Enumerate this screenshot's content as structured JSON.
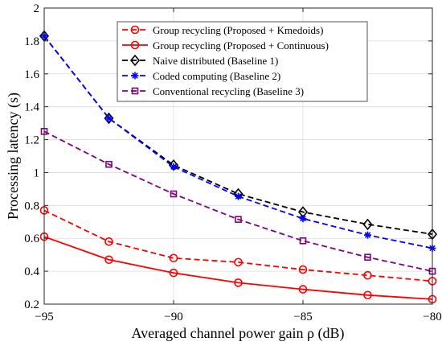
{
  "chart_data": {
    "type": "line",
    "title": "",
    "xlabel": "Averaged channel power gain ρ (dB)",
    "ylabel": "Processing latency (s)",
    "xlim": [
      -95,
      -80
    ],
    "ylim": [
      0.2,
      2.0
    ],
    "xticks": [
      -95,
      -90,
      -85,
      -80
    ],
    "xtick_labels": [
      "−95",
      "−90",
      "−85",
      "−80"
    ],
    "yticks": [
      0.2,
      0.4,
      0.6,
      0.8,
      1.0,
      1.2,
      1.4,
      1.6,
      1.8,
      2.0
    ],
    "ytick_labels": [
      "0.2",
      "0.4",
      "0.6",
      "0.8",
      "1",
      "1.2",
      "1.4",
      "1.6",
      "1.8",
      "2"
    ],
    "grid": true,
    "legend_position": "top-right",
    "x": [
      -95,
      -92.5,
      -90,
      -87.5,
      -85,
      -82.5,
      -80
    ],
    "series": [
      {
        "name": "Group recycling (Proposed + Kmedoids)",
        "color": "#ff0000",
        "dash": "dashed",
        "marker": "circle",
        "values": [
          0.77,
          0.58,
          0.48,
          0.455,
          0.41,
          0.375,
          0.34
        ]
      },
      {
        "name": "Group recycling (Proposed + Continuous)",
        "color": "#ff0000",
        "dash": "solid",
        "marker": "circle",
        "values": [
          0.61,
          0.47,
          0.39,
          0.33,
          0.29,
          0.255,
          0.23
        ]
      },
      {
        "name": "Naive distributed (Baseline 1)",
        "color": "#000000",
        "dash": "dashed",
        "marker": "diamond",
        "values": [
          1.83,
          1.33,
          1.045,
          0.87,
          0.76,
          0.685,
          0.625
        ]
      },
      {
        "name": "Coded computing (Baseline 2)",
        "color": "#0000ff",
        "dash": "dashed",
        "marker": "asterisk",
        "values": [
          1.83,
          1.33,
          1.035,
          0.855,
          0.72,
          0.62,
          0.54
        ]
      },
      {
        "name": "Conventional recycling (Baseline 3)",
        "color": "#800080",
        "dash": "dashed",
        "marker": "square",
        "values": [
          1.25,
          1.05,
          0.87,
          0.715,
          0.585,
          0.485,
          0.4
        ]
      }
    ]
  }
}
